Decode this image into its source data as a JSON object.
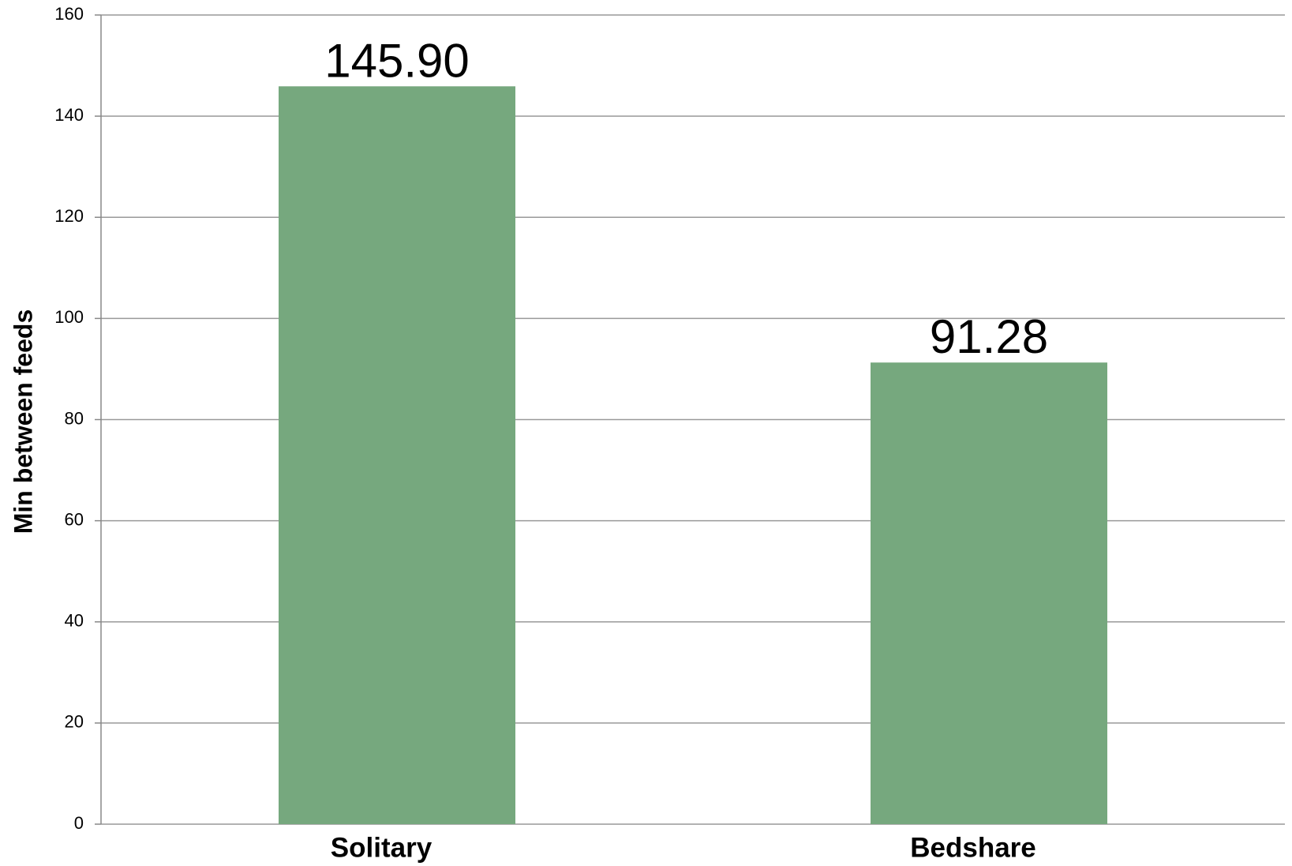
{
  "chart_data": {
    "type": "bar",
    "y_label": "Min between feeds",
    "categories": [
      "Solitary",
      "Bedshare"
    ],
    "values": [
      145.9,
      91.28
    ],
    "value_labels": [
      "145.90",
      "91.28"
    ],
    "color": "#76a87e",
    "ylim": [
      0,
      160
    ],
    "yticks": [
      0,
      20,
      40,
      60,
      80,
      100,
      120,
      140,
      160
    ],
    "grid": true
  }
}
